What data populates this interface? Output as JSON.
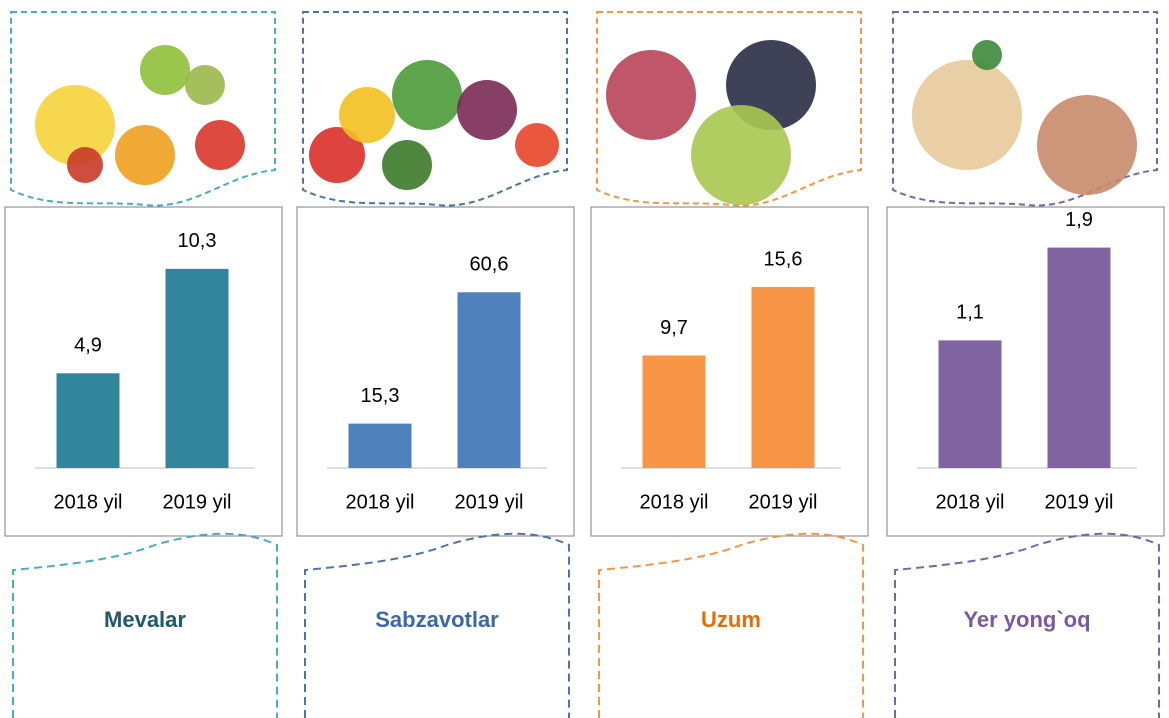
{
  "chart_data": [
    {
      "type": "bar",
      "title": "Mevalar",
      "categories": [
        "2018 yil",
        "2019 yil"
      ],
      "values": [
        4.9,
        10.3
      ],
      "value_labels": [
        "4,9",
        "10,3"
      ],
      "color": "#31859c",
      "title_color": "#215968",
      "frame_color": "#4bacc6",
      "ylim": [
        0,
        12
      ]
    },
    {
      "type": "bar",
      "title": "Sabzavotlar",
      "categories": [
        "2018 yil",
        "2019 yil"
      ],
      "values": [
        15.3,
        60.6
      ],
      "value_labels": [
        "15,3",
        "60,6"
      ],
      "color": "#4f81bd",
      "title_color": "#3c68a8",
      "frame_color": "#4f75a8",
      "ylim": [
        0,
        80
      ]
    },
    {
      "type": "bar",
      "title": "Uzum",
      "categories": [
        "2018 yil",
        "2019 yil"
      ],
      "values": [
        9.7,
        15.6
      ],
      "value_labels": [
        "9,7",
        "15,6"
      ],
      "color": "#f79646",
      "title_color": "#e46c0a",
      "frame_color": "#f79646",
      "ylim": [
        0,
        20
      ]
    },
    {
      "type": "bar",
      "title": "Yer yong`oq",
      "categories": [
        "2018 yil",
        "2019 yil"
      ],
      "values": [
        1.1,
        1.9
      ],
      "value_labels": [
        "1,1",
        "1,9"
      ],
      "color": "#8064a2",
      "title_color": "#7a5a9c",
      "frame_color": "#8064a2",
      "ylim": [
        0,
        2
      ]
    }
  ]
}
